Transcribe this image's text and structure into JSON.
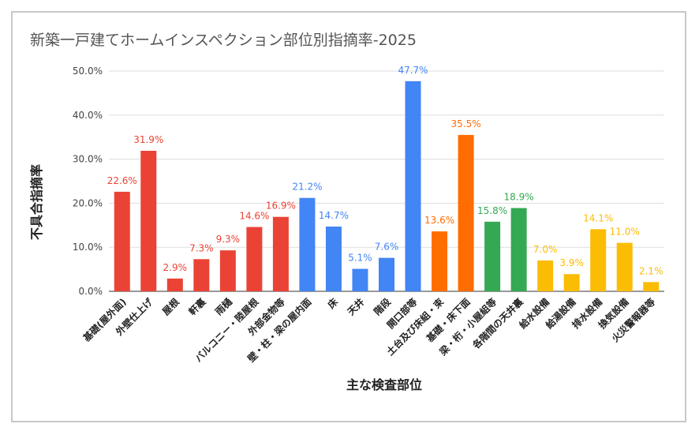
{
  "chart_data": {
    "type": "bar",
    "title": "新築一戸建てホームインスペクション部位別指摘率-2025",
    "xlabel": "主な検査部位",
    "ylabel": "不具合指摘率",
    "ylim": [
      0,
      50
    ],
    "yticks": [
      "0.0%",
      "10.0%",
      "20.0%",
      "30.0%",
      "40.0%",
      "50.0%"
    ],
    "grid": true,
    "colors": {
      "red": "#ea4335",
      "blue": "#4285f4",
      "orange": "#ff6d01",
      "green": "#34a853",
      "yellow": "#fbbc04"
    },
    "categories": [
      "基礎(屋外面)",
      "外壁仕上げ",
      "屋根",
      "軒裏",
      "雨樋",
      "バルコニー・陸屋根",
      "外部金物等",
      "壁・柱・梁の屋内面",
      "床",
      "天井",
      "階段",
      "開口部等",
      "土台及び床組・束",
      "基礎・床下面",
      "梁・桁・小屋組等",
      "各階間の天井裏",
      "給水設備",
      "給湯設備",
      "排水設備",
      "換気設備",
      "火災警報器等"
    ],
    "values": [
      22.6,
      31.9,
      2.9,
      7.3,
      9.3,
      14.6,
      16.9,
      21.2,
      14.7,
      5.1,
      7.6,
      47.7,
      13.6,
      35.5,
      15.8,
      18.9,
      7.0,
      3.9,
      14.1,
      11.0,
      2.1
    ],
    "labels": [
      "22.6%",
      "31.9%",
      "2.9%",
      "7.3%",
      "9.3%",
      "14.6%",
      "16.9%",
      "21.2%",
      "14.7%",
      "5.1%",
      "7.6%",
      "47.7%",
      "13.6%",
      "35.5%",
      "15.8%",
      "18.9%",
      "7.0%",
      "3.9%",
      "14.1%",
      "11.0%",
      "2.1%"
    ],
    "bar_colors": [
      "red",
      "red",
      "red",
      "red",
      "red",
      "red",
      "red",
      "blue",
      "blue",
      "blue",
      "blue",
      "blue",
      "orange",
      "orange",
      "green",
      "green",
      "yellow",
      "yellow",
      "yellow",
      "yellow",
      "yellow"
    ]
  }
}
